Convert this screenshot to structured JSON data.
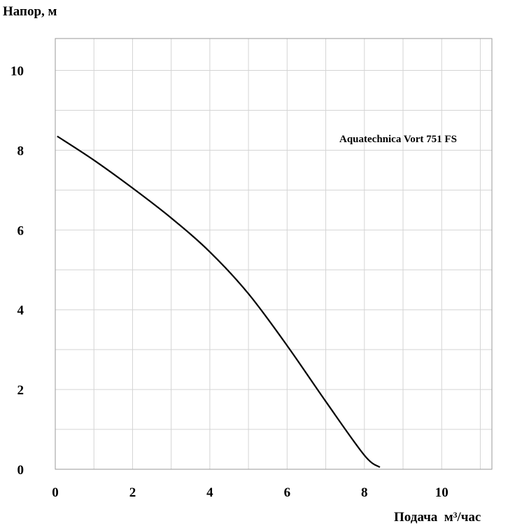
{
  "chart_data": {
    "type": "line",
    "ylabel": "Напор, м",
    "xlabel": "Подача  м³/час",
    "xlim": [
      0,
      11.3
    ],
    "ylim": [
      0,
      10.8
    ],
    "x_ticks": [
      0,
      2,
      4,
      6,
      8,
      10
    ],
    "y_ticks": [
      0,
      2,
      4,
      6,
      8,
      10
    ],
    "grid": true,
    "annotation": "Aquatechnica Vort 751 FS",
    "series": [
      {
        "x": [
          0.05,
          1.0,
          2.0,
          3.0,
          4.0,
          5.0,
          6.0,
          7.0,
          8.0,
          8.4
        ],
        "y": [
          8.35,
          7.75,
          7.05,
          6.3,
          5.45,
          4.4,
          3.1,
          1.7,
          0.35,
          0.05
        ]
      }
    ]
  }
}
